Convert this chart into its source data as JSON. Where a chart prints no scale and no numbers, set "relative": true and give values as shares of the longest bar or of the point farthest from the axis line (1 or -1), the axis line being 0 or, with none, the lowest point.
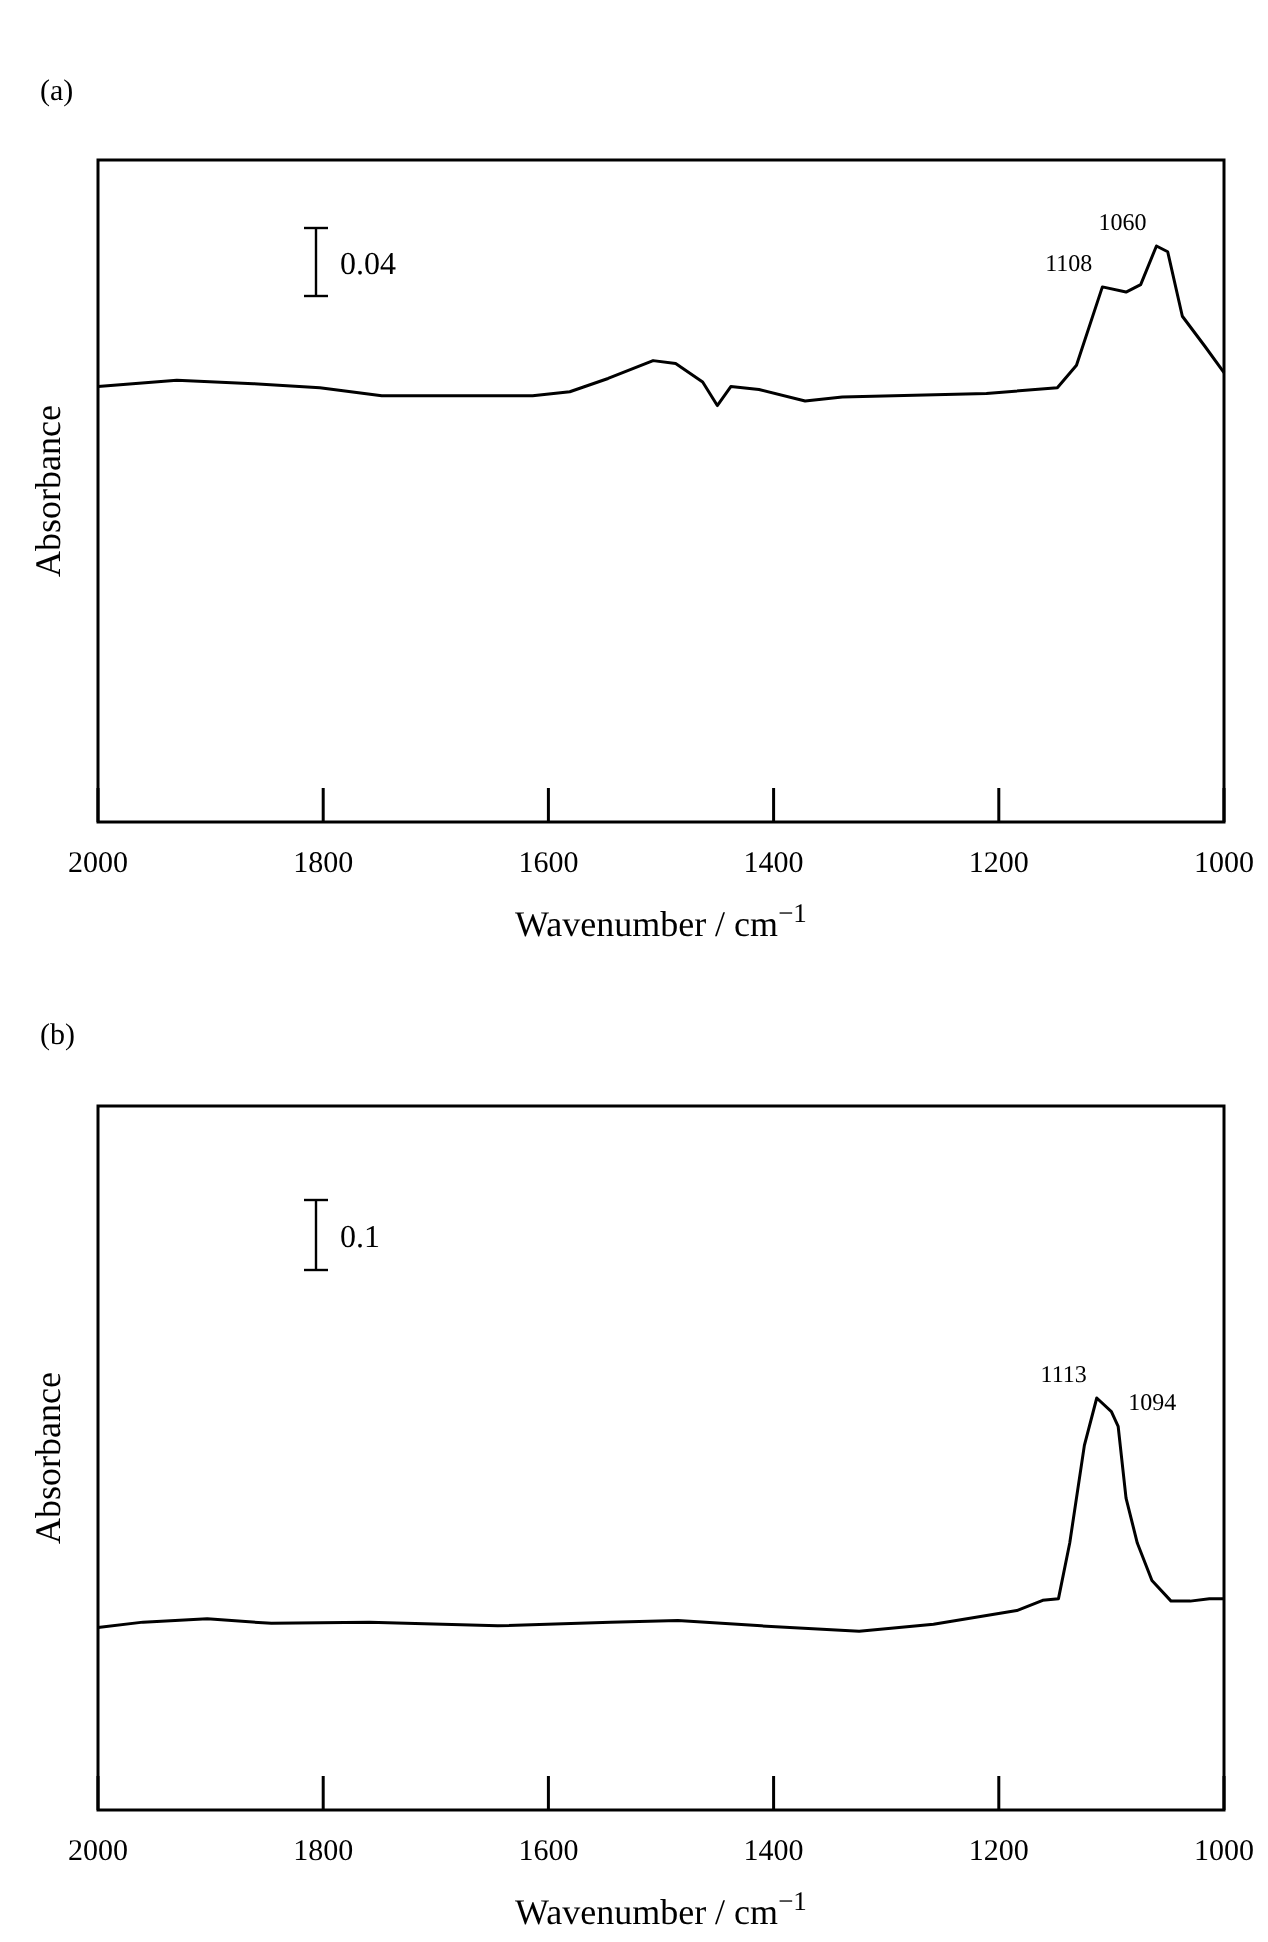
{
  "chart_data": [
    {
      "type": "line",
      "title": "(a)",
      "xlabel": "Wavenumber / cm$^{−1}$",
      "ylabel": "Absorbance",
      "relative": true,
      "xlim": [
        2000,
        1000
      ],
      "xticks": [
        2000,
        1800,
        1600,
        1400,
        1200,
        1000
      ],
      "tick_labels": "x",
      "grid": false,
      "marker": "none",
      "line_style": "solid",
      "series": [
        {
          "color": "#000000",
          "x": [
            2000,
            1930,
            1862,
            1803,
            1748,
            1614,
            1581,
            1547,
            1507,
            1487,
            1463,
            1450,
            1438,
            1413,
            1372,
            1339,
            1211,
            1148,
            1131,
            1108,
            1087,
            1074,
            1060,
            1050,
            1037,
            1017,
            1000
          ],
          "values": [
            0.756,
            0.767,
            0.761,
            0.754,
            0.74,
            0.74,
            0.747,
            0.77,
            0.801,
            0.796,
            0.764,
            0.723,
            0.756,
            0.751,
            0.731,
            0.738,
            0.744,
            0.754,
            0.793,
            0.929,
            0.92,
            0.933,
            1.0,
            0.99,
            0.878,
            0.826,
            0.78
          ]
        }
      ],
      "annotations": [
        "0.04",
        {
          "text": "1108",
          "x": 1108,
          "y": 0.929
        },
        {
          "text": "1060",
          "x": 1060,
          "y": 1.0
        }
      ]
    },
    {
      "type": "line",
      "title": "(b)",
      "xlabel": "Wavenumber / cm$^{−1}$",
      "ylabel": "Absorbance",
      "relative": true,
      "xlim": [
        2000,
        1000
      ],
      "xticks": [
        2000,
        1800,
        1600,
        1400,
        1200,
        1000
      ],
      "tick_labels": "x",
      "grid": false,
      "marker": "none",
      "line_style": "solid",
      "series": [
        {
          "color": "#000000",
          "x": [
            2000,
            1960,
            1903,
            1846,
            1759,
            1645,
            1545,
            1485,
            1411,
            1324,
            1258,
            1184,
            1161,
            1147,
            1137,
            1124,
            1113,
            1100,
            1094,
            1087,
            1077,
            1064,
            1047,
            1030,
            1013,
            1000
          ],
          "values": [
            0.443,
            0.456,
            0.464,
            0.453,
            0.456,
            0.447,
            0.456,
            0.46,
            0.447,
            0.434,
            0.451,
            0.484,
            0.509,
            0.513,
            0.648,
            0.885,
            1.0,
            0.967,
            0.931,
            0.757,
            0.648,
            0.557,
            0.507,
            0.507,
            0.513,
            0.513
          ]
        }
      ],
      "annotations": [
        "0.1",
        {
          "text": "1113",
          "x": 1113,
          "y": 1.0
        },
        {
          "text": "1094",
          "x": 1094,
          "y": 0.931
        }
      ]
    }
  ]
}
